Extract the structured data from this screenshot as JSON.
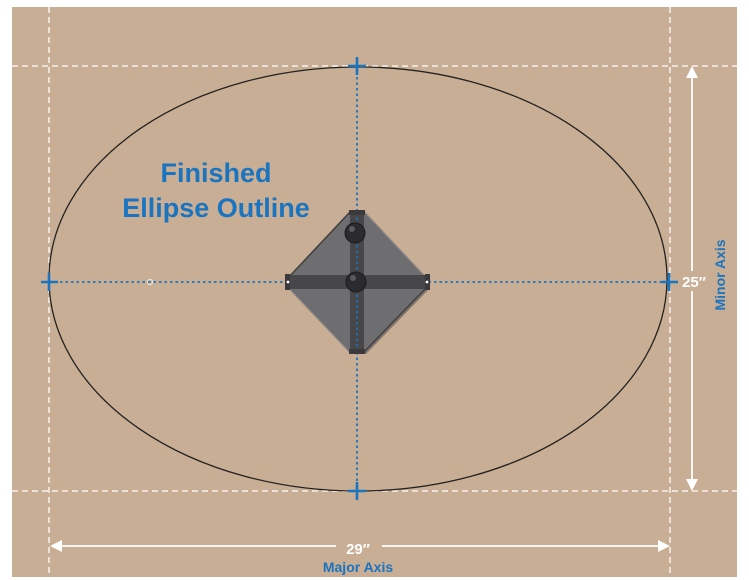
{
  "title": {
    "line1": "Finished",
    "line2": "Ellipse Outline"
  },
  "major_axis": {
    "measurement": "29″",
    "label": "Major Axis"
  },
  "minor_axis": {
    "measurement": "25″",
    "label": "Minor Axis"
  },
  "colors": {
    "board": "#c8ae94",
    "accent": "#1a74c0",
    "outline": "#222222",
    "guide": "#ffffff",
    "tool_body": "#6e6e71",
    "tool_frame": "#3f3f42"
  },
  "icons": {
    "center_marker": "plus-icon",
    "dimension_arrow": "double-arrow-icon",
    "trammel_tool": "trammel-jig-icon"
  }
}
